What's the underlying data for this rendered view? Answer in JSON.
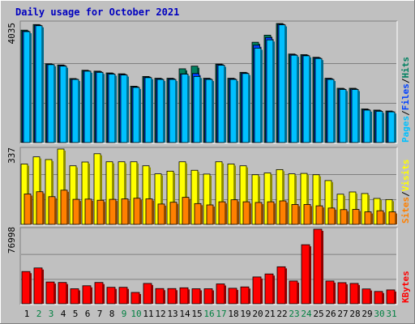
{
  "title": "Daily usage for October 2021",
  "colors": {
    "background": "#c0c0c0",
    "title": "#0000c0",
    "hits": "#008060",
    "files": "#0040ff",
    "pages": "#00c0ff",
    "visits": "#ffff00",
    "sites": "#ff8000",
    "kbytes": "#ff0000",
    "weekday_label": "#000000",
    "weekend_label": "#008040"
  },
  "chart_data": [
    {
      "type": "bar",
      "panel": "hits-files-pages",
      "max_label": "4035",
      "ylim": [
        0,
        4035
      ],
      "categories": [
        "1",
        "2",
        "3",
        "4",
        "5",
        "6",
        "7",
        "8",
        "9",
        "10",
        "11",
        "12",
        "13",
        "14",
        "15",
        "16",
        "17",
        "18",
        "19",
        "20",
        "21",
        "22",
        "23",
        "24",
        "25",
        "26",
        "27",
        "28",
        "29",
        "30",
        "31"
      ],
      "weekend_days": [
        "2",
        "3",
        "9",
        "10",
        "16",
        "17",
        "23",
        "24",
        "30",
        "31"
      ],
      "legend": [
        "Pages",
        "Files",
        "Hits"
      ],
      "series": [
        {
          "name": "Hits",
          "values": [
            3810,
            4000,
            2670,
            2630,
            2170,
            2450,
            2420,
            2360,
            2330,
            1910,
            2240,
            2180,
            2180,
            2500,
            2590,
            2180,
            2660,
            2180,
            2380,
            3400,
            3640,
            4035,
            3000,
            2980,
            2890,
            2180,
            1840,
            1840,
            1140,
            1100,
            1070
          ]
        },
        {
          "name": "Files",
          "values": [
            3780,
            3980,
            2650,
            2610,
            2150,
            2430,
            2400,
            2340,
            2310,
            1890,
            2220,
            2160,
            2160,
            2330,
            2340,
            2160,
            2640,
            2160,
            2360,
            3300,
            3560,
            4010,
            2980,
            2960,
            2870,
            2160,
            1820,
            1820,
            1120,
            1080,
            1050
          ]
        },
        {
          "name": "Pages",
          "values": [
            3760,
            3960,
            2640,
            2590,
            2140,
            2420,
            2380,
            2320,
            2290,
            1870,
            2200,
            2140,
            2140,
            2320,
            2240,
            2140,
            2620,
            2140,
            2340,
            3200,
            3480,
            3990,
            2960,
            2940,
            2850,
            2140,
            1800,
            1800,
            1100,
            1060,
            1040
          ]
        }
      ]
    },
    {
      "type": "bar",
      "panel": "visits-sites",
      "max_label": "337",
      "ylim": [
        0,
        337
      ],
      "categories": [
        "1",
        "2",
        "3",
        "4",
        "5",
        "6",
        "7",
        "8",
        "9",
        "10",
        "11",
        "12",
        "13",
        "14",
        "15",
        "16",
        "17",
        "18",
        "19",
        "20",
        "21",
        "22",
        "23",
        "24",
        "25",
        "26",
        "27",
        "28",
        "29",
        "30",
        "31"
      ],
      "legend": [
        "Sites",
        "Visits"
      ],
      "series": [
        {
          "name": "Visits",
          "values": [
            270,
            302,
            290,
            337,
            262,
            279,
            316,
            280,
            280,
            280,
            262,
            226,
            238,
            280,
            242,
            225,
            280,
            270,
            262,
            222,
            230,
            245,
            226,
            228,
            222,
            196,
            135,
            145,
            138,
            116,
            111
          ]
        },
        {
          "name": "Sites",
          "values": [
            136,
            146,
            124,
            153,
            112,
            113,
            108,
            112,
            114,
            117,
            114,
            91,
            99,
            121,
            93,
            87,
            101,
            110,
            101,
            98,
            101,
            105,
            89,
            89,
            83,
            73,
            66,
            67,
            56,
            61,
            56
          ]
        }
      ]
    },
    {
      "type": "bar",
      "panel": "kbytes",
      "max_label": "76998",
      "ylim": [
        0,
        76998
      ],
      "categories": [
        "1",
        "2",
        "3",
        "4",
        "5",
        "6",
        "7",
        "8",
        "9",
        "10",
        "11",
        "12",
        "13",
        "14",
        "15",
        "16",
        "17",
        "18",
        "19",
        "20",
        "21",
        "22",
        "23",
        "24",
        "25",
        "26",
        "27",
        "28",
        "29",
        "30",
        "31"
      ],
      "legend": [
        "KBytes"
      ],
      "series": [
        {
          "name": "KBytes",
          "values": [
            33300,
            37000,
            22500,
            22000,
            15500,
            18600,
            22000,
            17000,
            17000,
            11700,
            21000,
            15700,
            15700,
            16500,
            15500,
            15500,
            20500,
            16000,
            17400,
            27700,
            30800,
            38200,
            23500,
            61000,
            76998,
            23500,
            21800,
            21000,
            15300,
            12700,
            14300
          ]
        }
      ]
    }
  ]
}
